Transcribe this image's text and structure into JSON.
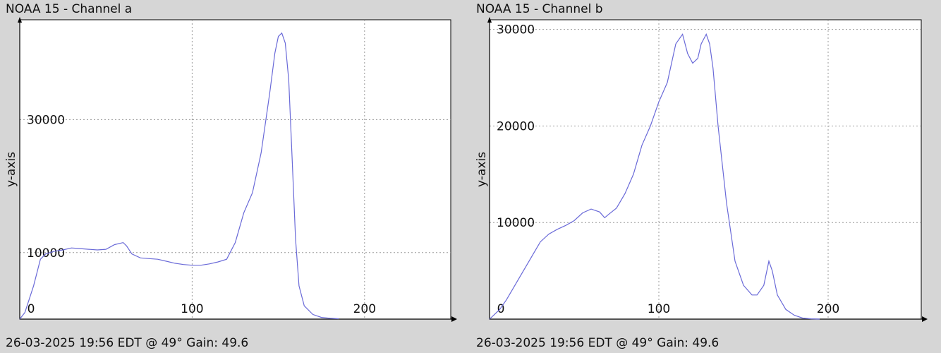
{
  "colors": {
    "plot_bg": "#ffffff",
    "page_bg": "#d6d6d6",
    "series": "#6a6ad8",
    "grid": "#9a9a9a"
  },
  "chart_data": [
    {
      "type": "line",
      "title": "NOAA 15 - Channel a",
      "footer": "26-03-2025 19:56 EDT @ 49° Gain: 49.6",
      "xlabel": "",
      "ylabel": "y-axis",
      "xlim": [
        0,
        250
      ],
      "ylim": [
        0,
        45000
      ],
      "x_ticks": [
        0,
        100,
        200
      ],
      "y_ticks": [
        10000,
        30000
      ],
      "grid": true,
      "series": [
        {
          "x": [
            0,
            3,
            8,
            12,
            15,
            20,
            25,
            30,
            35,
            40,
            45,
            50,
            55,
            60,
            62,
            65,
            70,
            75,
            80,
            85,
            90,
            95,
            100,
            105,
            110,
            115,
            120,
            125,
            130,
            135,
            140,
            145,
            148,
            150,
            152,
            154,
            156,
            158,
            160,
            162,
            165,
            170,
            175,
            180,
            185
          ],
          "y": [
            0,
            1000,
            5000,
            9000,
            9800,
            10200,
            10400,
            10700,
            10600,
            10500,
            10400,
            10500,
            11200,
            11500,
            11000,
            9800,
            9200,
            9100,
            9000,
            8700,
            8400,
            8200,
            8100,
            8100,
            8300,
            8600,
            9000,
            11500,
            16000,
            19000,
            25000,
            34000,
            40000,
            42500,
            43000,
            41500,
            36000,
            24000,
            12000,
            5000,
            2000,
            700,
            250,
            120,
            50
          ]
        }
      ]
    },
    {
      "type": "line",
      "title": "NOAA 15 - Channel b",
      "footer": "26-03-2025 19:56 EDT @ 49° Gain: 49.6",
      "xlabel": "",
      "ylabel": "y-axis",
      "xlim": [
        0,
        255
      ],
      "ylim": [
        0,
        31000
      ],
      "x_ticks": [
        0,
        100,
        200
      ],
      "y_ticks": [
        10000,
        20000,
        30000
      ],
      "grid": true,
      "series": [
        {
          "x": [
            0,
            3,
            6,
            10,
            15,
            20,
            25,
            30,
            35,
            40,
            45,
            50,
            55,
            60,
            65,
            68,
            70,
            75,
            80,
            85,
            90,
            95,
            100,
            105,
            110,
            114,
            117,
            120,
            123,
            125,
            128,
            130,
            132,
            135,
            140,
            145,
            150,
            155,
            158,
            162,
            165,
            167,
            170,
            175,
            180,
            185,
            190,
            195
          ],
          "y": [
            0,
            500,
            1000,
            2000,
            3500,
            5000,
            6500,
            8000,
            8800,
            9300,
            9700,
            10200,
            11000,
            11400,
            11100,
            10500,
            10800,
            11500,
            13000,
            15000,
            18000,
            20000,
            22500,
            24500,
            28500,
            29500,
            27500,
            26500,
            27000,
            28500,
            29500,
            28500,
            26000,
            20000,
            12000,
            6000,
            3500,
            2500,
            2500,
            3500,
            6000,
            5000,
            2500,
            1000,
            400,
            100,
            30,
            0
          ]
        }
      ]
    }
  ]
}
